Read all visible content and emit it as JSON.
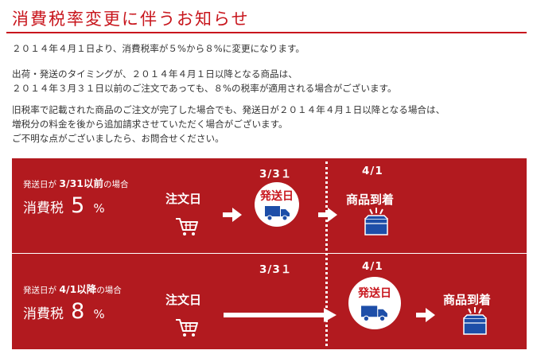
{
  "title": "消費税率変更に伴うお知らせ",
  "paragraphs": {
    "p1": [
      "２０１４年４月１日より、消費税率が５%から８%に変更になります。"
    ],
    "p2": [
      "出荷・発送のタイミングが、２０１４年４月１日以降となる商品は、",
      "２０１４年３月３１日以前のご注文であっても、８%の税率が適用される場合がございます。"
    ],
    "p3": [
      "旧税率で記載された商品のご注文が完了した場合でも、発送日が２０１４年４月１日以降となる場合は、",
      "増税分の料金を後から追加請求させていただく場合がございます。",
      "ご不明な点がございましたら、お問合せください。"
    ]
  },
  "row1": {
    "condition_prefix": "発送日が",
    "condition_date": "3/31以前",
    "condition_suffix": "の場合",
    "tax_label": "消費税",
    "tax_rate": "5",
    "tax_unit": "%",
    "order_label": "注文日",
    "date_left": "3/3１",
    "date_right": "4/1",
    "ship_label": "発送日",
    "arrive_label": "商品到着"
  },
  "row2": {
    "condition_prefix": "発送日が",
    "condition_date": "4/1以降",
    "condition_suffix": "の場合",
    "tax_label": "消費税",
    "tax_rate": "8",
    "tax_unit": "%",
    "order_label": "注文日",
    "date_left": "3/3１",
    "date_right": "4/1",
    "ship_label": "発送日",
    "arrive_label": "商品到着"
  },
  "colors": {
    "accent": "#c8161d",
    "panel": "#b21a1f",
    "truck": "#1d4ea8"
  },
  "icons": {
    "cart": "cart-icon",
    "truck": "truck-icon",
    "package": "package-icon",
    "arrow": "arrow-right-icon"
  }
}
